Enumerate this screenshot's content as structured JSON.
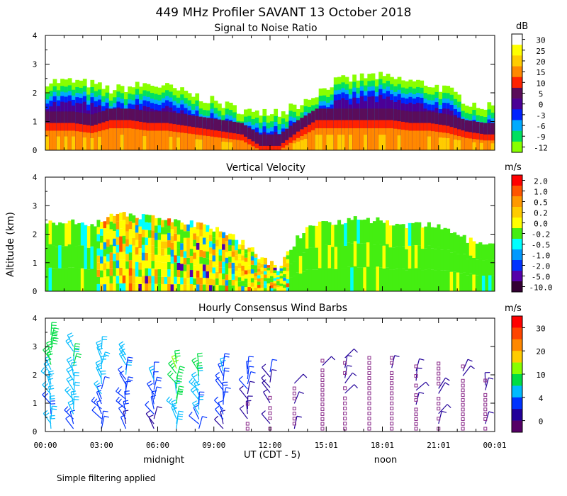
{
  "figure_title": "449 MHz Profiler SAVANT 13 October 2018",
  "ylabel": "Altitude (km)",
  "xlabel": "UT (CDT - 5)",
  "time_labels": [
    "00:00",
    "03:00",
    "06:00",
    "09:00",
    "12:00",
    "15:01",
    "18:01",
    "21:01",
    "00:01"
  ],
  "extra_labels": [
    "midnight",
    "noon"
  ],
  "footnote": "Simple filtering applied",
  "chart_data": [
    {
      "type": "heatmap",
      "title": "Signal to Noise Ratio",
      "ylim": [
        0,
        4
      ],
      "yticks": [
        "0",
        "1",
        "2",
        "3",
        "4"
      ],
      "colorbar_unit": "dB",
      "colorbar_labels": [
        "30",
        "25",
        "20",
        "15",
        "10",
        "5",
        "0",
        "-3",
        "-6",
        "-9",
        "-12"
      ],
      "colorbar_colors": [
        "#ffffff",
        "#ffff00",
        "#ffcc00",
        "#ff8800",
        "#ff2200",
        "#5a0d5a",
        "#4b0096",
        "#0022ff",
        "#00aaff",
        "#00e060",
        "#88ff00"
      ],
      "echo_top_km": [
        2.4,
        2.4,
        2.3,
        2.1,
        2.2,
        2.3,
        2.2,
        2.0,
        1.8,
        1.6,
        1.4,
        1.3,
        1.3,
        1.6,
        2.0,
        2.4,
        2.5,
        2.6,
        2.5,
        2.4,
        2.3,
        2.1,
        1.7,
        1.5
      ],
      "high_snr_top_km": [
        0.8,
        0.8,
        0.7,
        0.9,
        0.9,
        0.8,
        0.8,
        0.7,
        0.6,
        0.5,
        0.4,
        0.0,
        0.0,
        0.5,
        0.9,
        0.9,
        0.9,
        0.9,
        0.9,
        0.8,
        0.8,
        0.7,
        0.5,
        0.4
      ]
    },
    {
      "type": "heatmap",
      "title": "Vertical Velocity",
      "ylim": [
        0,
        4
      ],
      "yticks": [
        "0",
        "1",
        "2",
        "3",
        "4"
      ],
      "colorbar_unit": "m/s",
      "colorbar_labels": [
        "2.0",
        "1.0",
        "0.5",
        "0.2",
        "0.0",
        "-0.2",
        "-0.5",
        "-1.0",
        "-2.0",
        "-5.0",
        "-10.0"
      ],
      "colorbar_colors": [
        "#ff0000",
        "#ff5500",
        "#ff9900",
        "#ffcc00",
        "#ffff00",
        "#44ee11",
        "#00ffff",
        "#0099ff",
        "#0033ff",
        "#5500aa",
        "#330033"
      ],
      "echo_top_km": [
        2.4,
        2.4,
        2.3,
        2.6,
        2.7,
        2.6,
        2.5,
        2.4,
        2.3,
        2.1,
        1.7,
        1.2,
        0.8,
        1.9,
        2.4,
        2.4,
        2.6,
        2.5,
        2.4,
        2.3,
        2.3,
        2.2,
        1.8,
        1.6
      ],
      "turbulent_start_hour": 2.8,
      "turbulent_end_hour": 13.0
    },
    {
      "type": "scatter",
      "title": "Hourly Consensus Wind Barbs",
      "ylim": [
        0,
        4
      ],
      "yticks": [
        "0",
        "1",
        "2",
        "3",
        "4"
      ],
      "colorbar_unit": "m/s",
      "colorbar_labels": [
        "30",
        "20",
        "10",
        "4",
        "0"
      ],
      "colorbar_colors": [
        "#ff0000",
        "#ff4400",
        "#ff8800",
        "#ffcc00",
        "#88ff00",
        "#00dd44",
        "#00bbff",
        "#0033ff",
        "#220099",
        "#550066"
      ],
      "barb_hours": [
        0.3,
        1.5,
        3.0,
        4.3,
        5.8,
        7.0,
        8.2,
        9.5,
        10.8,
        12.0,
        13.3,
        14.8,
        16.0,
        17.3,
        18.5,
        19.8,
        21.0,
        22.3,
        23.5
      ],
      "barb_max_alt_km": [
        3.4,
        3.0,
        2.9,
        2.7,
        2.0,
        2.4,
        2.3,
        2.3,
        2.2,
        2.1,
        1.7,
        2.5,
        2.6,
        2.6,
        2.6,
        2.3,
        2.4,
        2.3,
        1.8
      ],
      "barb_speed_ms": [
        14,
        12,
        11,
        10,
        8,
        15,
        13,
        9,
        5,
        4,
        3,
        2,
        2,
        1,
        2,
        2,
        2,
        2,
        2
      ]
    }
  ]
}
